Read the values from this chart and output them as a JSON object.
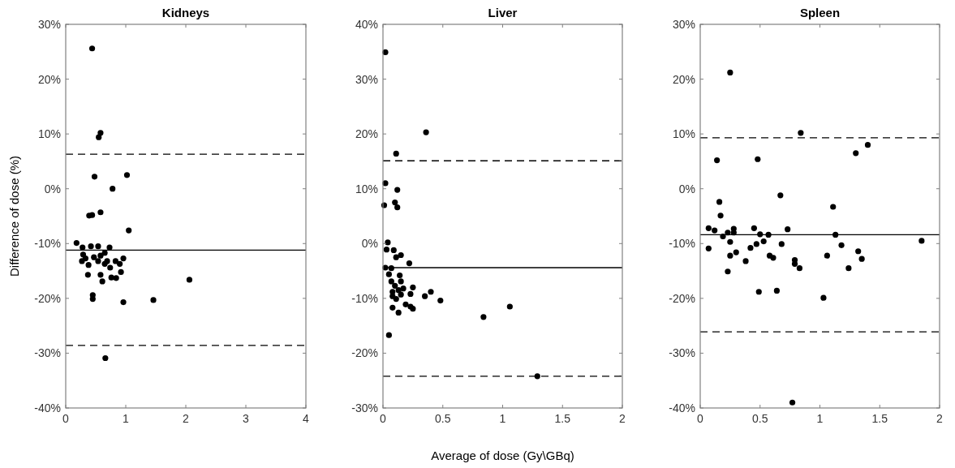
{
  "chart_data": [
    {
      "type": "scatter",
      "title": "Kidneys",
      "ylabel": "Difference of dose (%)",
      "xlim": [
        0,
        4
      ],
      "xticks": [
        0,
        1,
        2,
        3,
        4
      ],
      "ylim": [
        -40,
        30
      ],
      "yticks": [
        {
          "value": -40,
          "label": "-40%"
        },
        {
          "value": -30,
          "label": "-30%"
        },
        {
          "value": -20,
          "label": "-20%"
        },
        {
          "value": -10,
          "label": "-10%"
        },
        {
          "value": 0,
          "label": "0%"
        },
        {
          "value": 10,
          "label": "10%"
        },
        {
          "value": 20,
          "label": "20%"
        },
        {
          "value": 30,
          "label": "30%"
        }
      ],
      "marker": "circle",
      "grid": false,
      "series": [
        {
          "color": "#000000",
          "x": [
            0.44,
            0.58,
            0.55,
            0.48,
            1.02,
            0.78,
            0.39,
            0.44,
            0.58,
            1.05,
            0.18,
            0.28,
            0.42,
            0.54,
            0.73,
            0.29,
            0.27,
            0.33,
            0.38,
            0.47,
            0.54,
            0.58,
            0.65,
            0.65,
            0.69,
            0.74,
            0.83,
            0.9,
            0.96,
            0.58,
            0.61,
            0.76,
            0.84,
            0.92,
            0.37,
            0.45,
            0.45,
            0.96,
            1.46,
            2.06,
            0.66
          ],
          "values": [
            25.6,
            10.2,
            9.4,
            2.2,
            2.5,
            0.0,
            -4.9,
            -4.8,
            -4.3,
            -7.6,
            -9.9,
            -10.7,
            -10.5,
            -10.5,
            -10.7,
            -12.0,
            -13.2,
            -12.7,
            -13.9,
            -12.5,
            -13.2,
            -12.2,
            -11.7,
            -13.7,
            -13.2,
            -14.4,
            -13.2,
            -13.7,
            -12.7,
            -15.7,
            -16.9,
            -16.2,
            -16.3,
            -15.2,
            -15.7,
            -19.4,
            -20.1,
            -20.7,
            -20.3,
            -16.6,
            -30.9
          ]
        }
      ],
      "ref_lines": [
        {
          "axis": "y",
          "value": 6.3,
          "color": "#000000",
          "line_style": "dashed"
        },
        {
          "axis": "y",
          "value": -11.2,
          "color": "#000000",
          "line_style": "solid"
        },
        {
          "axis": "y",
          "value": -28.6,
          "color": "#000000",
          "line_style": "dashed"
        }
      ]
    },
    {
      "type": "scatter",
      "title": "Liver",
      "xlabel": "Average of dose (Gy\\GBq)",
      "xlim": [
        0,
        2
      ],
      "xticks": [
        0,
        0.5,
        1,
        1.5,
        2
      ],
      "ylim": [
        -30,
        40
      ],
      "yticks": [
        {
          "value": -30,
          "label": "-30%"
        },
        {
          "value": -20,
          "label": "-20%"
        },
        {
          "value": -10,
          "label": "-10%"
        },
        {
          "value": 0,
          "label": "0%"
        },
        {
          "value": 10,
          "label": "10%"
        },
        {
          "value": 20,
          "label": "20%"
        },
        {
          "value": 30,
          "label": "30%"
        },
        {
          "value": 40,
          "label": "40%"
        }
      ],
      "marker": "circle",
      "grid": false,
      "series": [
        {
          "color": "#000000",
          "x": [
            0.02,
            0.36,
            0.11,
            0.02,
            0.12,
            0.01,
            0.1,
            0.12,
            0.04,
            0.03,
            0.09,
            0.11,
            0.15,
            0.22,
            0.02,
            0.07,
            0.05,
            0.07,
            0.14,
            0.15,
            0.1,
            0.08,
            0.13,
            0.17,
            0.25,
            0.23,
            0.08,
            0.11,
            0.15,
            0.35,
            0.4,
            0.48,
            0.08,
            0.13,
            0.19,
            0.23,
            0.25,
            0.05,
            0.84,
            1.06,
            1.29
          ],
          "values": [
            34.9,
            20.3,
            16.4,
            11.0,
            9.8,
            7.0,
            7.5,
            6.6,
            0.2,
            -1.1,
            -1.2,
            -2.5,
            -2.1,
            -3.6,
            -4.4,
            -4.5,
            -5.6,
            -6.9,
            -5.8,
            -6.9,
            -7.7,
            -8.8,
            -8.5,
            -8.2,
            -8.0,
            -9.2,
            -9.6,
            -10.1,
            -9.3,
            -9.6,
            -8.8,
            -10.4,
            -11.7,
            -12.6,
            -11.1,
            -11.5,
            -11.9,
            -16.7,
            -13.4,
            -11.5,
            -24.2
          ]
        }
      ],
      "ref_lines": [
        {
          "axis": "y",
          "value": 15.1,
          "color": "#000000",
          "line_style": "dashed"
        },
        {
          "axis": "y",
          "value": -4.4,
          "color": "#000000",
          "line_style": "solid"
        },
        {
          "axis": "y",
          "value": -24.2,
          "color": "#000000",
          "line_style": "dashed"
        }
      ]
    },
    {
      "type": "scatter",
      "title": "Spleen",
      "xlim": [
        0,
        2
      ],
      "xticks": [
        0,
        0.5,
        1,
        1.5,
        2
      ],
      "ylim": [
        -40,
        30
      ],
      "yticks": [
        {
          "value": -40,
          "label": "-40%"
        },
        {
          "value": -30,
          "label": "-30%"
        },
        {
          "value": -20,
          "label": "-20%"
        },
        {
          "value": -10,
          "label": "-10%"
        },
        {
          "value": 0,
          "label": "0%"
        },
        {
          "value": 10,
          "label": "10%"
        },
        {
          "value": 20,
          "label": "20%"
        },
        {
          "value": 30,
          "label": "30%"
        }
      ],
      "marker": "circle",
      "grid": false,
      "series": [
        {
          "color": "#000000",
          "x": [
            0.25,
            0.84,
            1.4,
            1.3,
            0.14,
            0.48,
            0.67,
            0.16,
            0.17,
            1.11,
            0.07,
            0.12,
            0.19,
            0.23,
            0.28,
            0.28,
            0.25,
            0.07,
            0.25,
            0.3,
            0.23,
            0.38,
            0.45,
            0.5,
            0.57,
            0.53,
            0.47,
            0.42,
            0.68,
            0.73,
            0.58,
            0.61,
            0.79,
            0.79,
            0.83,
            0.49,
            0.64,
            1.03,
            1.06,
            1.13,
            1.18,
            1.24,
            1.32,
            1.35,
            1.85,
            0.77
          ],
          "values": [
            21.2,
            10.2,
            8.0,
            6.5,
            5.2,
            5.4,
            -1.2,
            -2.4,
            -4.9,
            -3.3,
            -7.2,
            -7.6,
            -8.7,
            -8.0,
            -7.3,
            -8.0,
            -9.7,
            -10.9,
            -12.2,
            -11.6,
            -15.1,
            -13.2,
            -7.2,
            -8.3,
            -8.4,
            -9.6,
            -10.1,
            -10.8,
            -10.1,
            -7.4,
            -12.2,
            -12.6,
            -13.0,
            -13.7,
            -14.5,
            -18.8,
            -18.6,
            -19.9,
            -12.2,
            -8.4,
            -10.3,
            -14.5,
            -11.4,
            -12.8,
            -9.5,
            -39.0
          ]
        }
      ],
      "ref_lines": [
        {
          "axis": "y",
          "value": 9.3,
          "color": "#000000",
          "line_style": "dashed"
        },
        {
          "axis": "y",
          "value": -8.4,
          "color": "#000000",
          "line_style": "solid"
        },
        {
          "axis": "y",
          "value": -26.1,
          "color": "#000000",
          "line_style": "dashed"
        }
      ]
    }
  ]
}
